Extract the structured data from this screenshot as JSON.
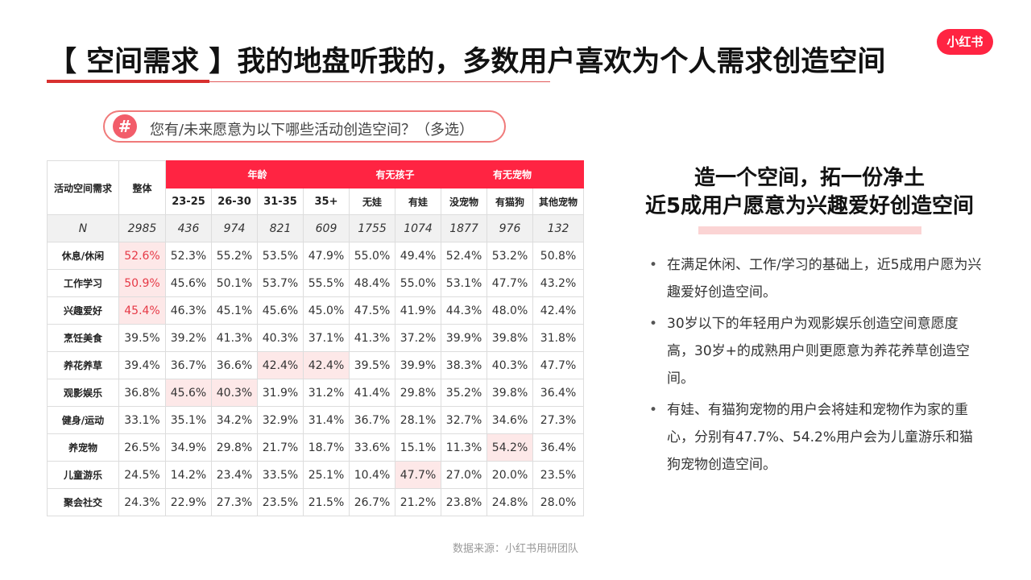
{
  "header": {
    "title": "【 空间需求 】我的地盘听我的，多数用户喜欢为个人需求创造空间",
    "logo_text": "小红书"
  },
  "question": {
    "icon": "#",
    "text": "您有/未来愿意为以下哪些活动创造空间？（多选）"
  },
  "colors": {
    "accent": "#ff2442",
    "highlight": "#fde8e8",
    "highlight_text": "#e63946"
  },
  "chart_data": {
    "type": "table",
    "header": {
      "row_label": "活动空间需求",
      "overall": "整体",
      "groups": [
        {
          "label": "年龄",
          "columns": [
            "23-25",
            "26-30",
            "31-35",
            "35+"
          ]
        },
        {
          "label": "有无孩子",
          "columns": [
            "无娃",
            "有娃"
          ]
        },
        {
          "label": "有无宠物",
          "columns": [
            "没宠物",
            "有猫狗",
            "其他宠物"
          ]
        }
      ]
    },
    "n_row": {
      "label": "N",
      "values": [
        "2985",
        "436",
        "974",
        "821",
        "609",
        "1755",
        "1074",
        "1877",
        "976",
        "132"
      ]
    },
    "rows": [
      {
        "label": "休息/休闲",
        "values": [
          "52.6%",
          "52.3%",
          "55.2%",
          "53.5%",
          "47.9%",
          "55.0%",
          "49.4%",
          "52.4%",
          "53.2%",
          "50.8%"
        ]
      },
      {
        "label": "工作学习",
        "values": [
          "50.9%",
          "45.6%",
          "50.1%",
          "53.7%",
          "55.5%",
          "48.4%",
          "55.0%",
          "53.1%",
          "47.7%",
          "43.2%"
        ]
      },
      {
        "label": "兴趣爱好",
        "values": [
          "45.4%",
          "46.3%",
          "45.1%",
          "45.6%",
          "45.0%",
          "47.5%",
          "41.9%",
          "44.3%",
          "48.0%",
          "42.4%"
        ]
      },
      {
        "label": "烹饪美食",
        "values": [
          "39.5%",
          "39.2%",
          "41.3%",
          "40.3%",
          "37.1%",
          "41.3%",
          "37.2%",
          "39.9%",
          "39.8%",
          "31.8%"
        ]
      },
      {
        "label": "养花养草",
        "values": [
          "39.4%",
          "36.7%",
          "36.6%",
          "42.4%",
          "42.4%",
          "39.5%",
          "39.9%",
          "38.3%",
          "40.3%",
          "47.7%"
        ]
      },
      {
        "label": "观影娱乐",
        "values": [
          "36.8%",
          "45.6%",
          "40.3%",
          "31.9%",
          "31.2%",
          "41.4%",
          "29.8%",
          "35.2%",
          "39.8%",
          "36.4%"
        ]
      },
      {
        "label": "健身/运动",
        "values": [
          "33.1%",
          "35.1%",
          "34.2%",
          "32.9%",
          "31.4%",
          "36.7%",
          "28.1%",
          "32.7%",
          "34.6%",
          "27.3%"
        ]
      },
      {
        "label": "养宠物",
        "values": [
          "26.5%",
          "34.9%",
          "29.8%",
          "21.7%",
          "18.7%",
          "33.6%",
          "15.1%",
          "11.3%",
          "54.2%",
          "36.4%"
        ]
      },
      {
        "label": "儿童游乐",
        "values": [
          "24.5%",
          "14.2%",
          "23.4%",
          "33.5%",
          "25.1%",
          "10.4%",
          "47.7%",
          "27.0%",
          "20.0%",
          "23.5%"
        ]
      },
      {
        "label": "聚会社交",
        "values": [
          "24.3%",
          "22.9%",
          "27.3%",
          "23.5%",
          "21.5%",
          "26.7%",
          "21.2%",
          "23.8%",
          "24.8%",
          "28.0%"
        ]
      }
    ],
    "highlighted_cells": [
      [
        0,
        0
      ],
      [
        1,
        0
      ],
      [
        2,
        0
      ],
      [
        4,
        3
      ],
      [
        4,
        4
      ],
      [
        5,
        1
      ],
      [
        5,
        2
      ],
      [
        7,
        8
      ],
      [
        8,
        6
      ]
    ],
    "red_text_cells": [
      [
        0,
        0
      ],
      [
        1,
        0
      ],
      [
        2,
        0
      ]
    ]
  },
  "insight": {
    "title_line1": "造一个空间，拓一份净土",
    "title_line2": "近5成用户愿意为兴趣爱好创造空间",
    "bullets": [
      "在满足休闲、工作/学习的基础上，近5成用户愿为兴趣爱好创造空间。",
      "30岁以下的年轻用户为观影娱乐创造空间意愿度高，30岁+的成熟用户则更愿意为养花养草创造空间。",
      "有娃、有猫狗宠物的用户会将娃和宠物作为家的重心，分别有47.7%、54.2%用户会为儿童游乐和猫狗宠物创造空间。"
    ]
  },
  "footer": {
    "source": "数据来源：小红书用研团队"
  }
}
